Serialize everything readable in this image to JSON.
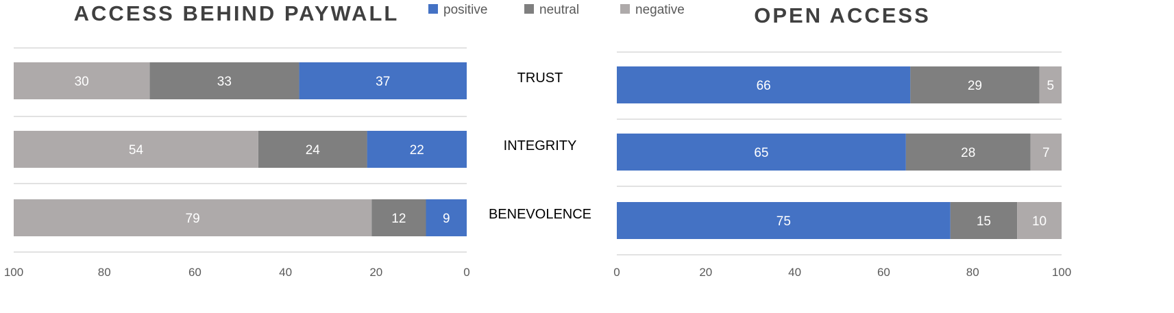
{
  "chart_data": {
    "type": "bar",
    "orientation": "horizontal",
    "stacked": true,
    "categories": [
      "TRUST",
      "INTEGRITY",
      "BENEVOLENCE"
    ],
    "legend": {
      "placement": "top-center",
      "entries": [
        {
          "label": "positive",
          "color": "#4472c4"
        },
        {
          "label": "neutral",
          "color": "#7f7f7f"
        },
        {
          "label": "negative",
          "color": "#aeaaaa"
        }
      ]
    },
    "panels": [
      {
        "title": "ACCESS BEHIND PAYWALL",
        "x_axis": {
          "range": [
            0,
            100
          ],
          "reversed": true,
          "ticks": [
            100,
            80,
            60,
            40,
            20,
            0
          ]
        },
        "series": [
          {
            "name": "positive",
            "color": "#4472c4",
            "values": [
              37,
              22,
              9
            ]
          },
          {
            "name": "neutral",
            "color": "#7f7f7f",
            "values": [
              33,
              24,
              12
            ]
          },
          {
            "name": "negative",
            "color": "#aeaaaa",
            "values": [
              30,
              54,
              79
            ]
          }
        ]
      },
      {
        "title": "OPEN ACCESS",
        "x_axis": {
          "range": [
            0,
            100
          ],
          "reversed": false,
          "ticks": [
            0,
            20,
            40,
            60,
            80,
            100
          ]
        },
        "series": [
          {
            "name": "positive",
            "color": "#4472c4",
            "values": [
              66,
              65,
              75
            ]
          },
          {
            "name": "neutral",
            "color": "#7f7f7f",
            "values": [
              29,
              28,
              15
            ]
          },
          {
            "name": "negative",
            "color": "#aeaaaa",
            "values": [
              5,
              7,
              10
            ]
          }
        ]
      }
    ],
    "grid": {
      "vertical": false,
      "row_separators": true
    }
  }
}
